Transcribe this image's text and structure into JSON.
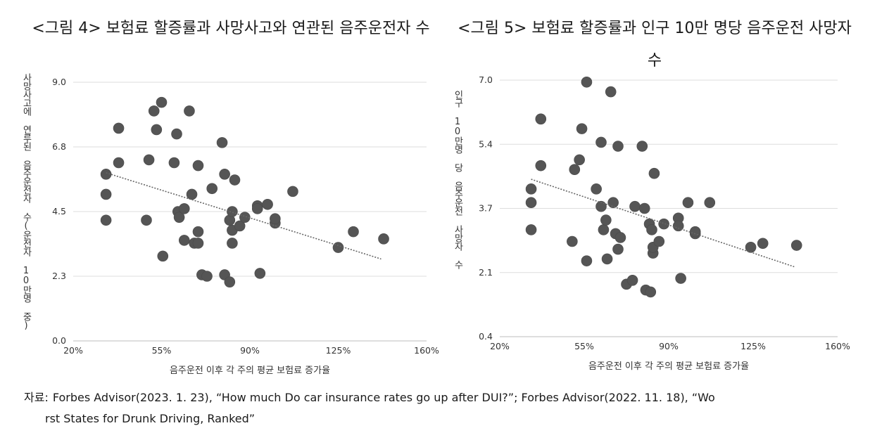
{
  "chart_data": [
    {
      "type": "scatter",
      "title": "<그림 4> 보험료 할증률과 사망사고와 연관된 음주운전자 수",
      "xlabel": "음주운전 이후 각 주의 평균 보험료 증가율",
      "ylabel": "사망사고에 연루된 음주운전자 수(운전자 10만명 중)",
      "xlim": [
        20,
        160
      ],
      "ylim": [
        0,
        9
      ],
      "x_ticks": [
        "20%",
        "55%",
        "90%",
        "125%",
        "160%"
      ],
      "y_ticks": [
        "0.0",
        "2.3",
        "4.5",
        "6.8",
        "9.0"
      ],
      "grid": "horizontal",
      "trendline": {
        "x": [
          33,
          142
        ],
        "y": [
          5.85,
          2.85
        ]
      },
      "points": [
        {
          "x": 33,
          "y": 5.8
        },
        {
          "x": 33,
          "y": 5.1
        },
        {
          "x": 33,
          "y": 4.2
        },
        {
          "x": 38,
          "y": 7.4
        },
        {
          "x": 38,
          "y": 6.2
        },
        {
          "x": 49,
          "y": 4.2
        },
        {
          "x": 50,
          "y": 6.3
        },
        {
          "x": 52,
          "y": 8.0
        },
        {
          "x": 53,
          "y": 7.35
        },
        {
          "x": 55,
          "y": 8.3
        },
        {
          "x": 55.5,
          "y": 2.95
        },
        {
          "x": 60,
          "y": 6.2
        },
        {
          "x": 61,
          "y": 7.2
        },
        {
          "x": 61.5,
          "y": 4.5
        },
        {
          "x": 62,
          "y": 4.3
        },
        {
          "x": 64,
          "y": 3.5
        },
        {
          "x": 64,
          "y": 4.6
        },
        {
          "x": 66,
          "y": 8.0
        },
        {
          "x": 67,
          "y": 5.1
        },
        {
          "x": 68,
          "y": 3.4
        },
        {
          "x": 69.5,
          "y": 3.4
        },
        {
          "x": 69.5,
          "y": 3.8
        },
        {
          "x": 69.5,
          "y": 6.1
        },
        {
          "x": 71,
          "y": 2.3
        },
        {
          "x": 73,
          "y": 2.25
        },
        {
          "x": 75,
          "y": 5.3
        },
        {
          "x": 79,
          "y": 6.9
        },
        {
          "x": 80,
          "y": 5.8
        },
        {
          "x": 80,
          "y": 2.3
        },
        {
          "x": 82,
          "y": 2.05
        },
        {
          "x": 82,
          "y": 4.2
        },
        {
          "x": 83,
          "y": 3.4
        },
        {
          "x": 83,
          "y": 3.85
        },
        {
          "x": 83,
          "y": 4.5
        },
        {
          "x": 84,
          "y": 5.6
        },
        {
          "x": 86,
          "y": 4.0
        },
        {
          "x": 88,
          "y": 4.3
        },
        {
          "x": 93,
          "y": 4.7
        },
        {
          "x": 93,
          "y": 4.6
        },
        {
          "x": 94,
          "y": 2.35
        },
        {
          "x": 97,
          "y": 4.75
        },
        {
          "x": 100,
          "y": 4.1
        },
        {
          "x": 100,
          "y": 4.25
        },
        {
          "x": 107,
          "y": 5.2
        },
        {
          "x": 125,
          "y": 3.25
        },
        {
          "x": 131,
          "y": 3.8
        },
        {
          "x": 143,
          "y": 3.55
        }
      ]
    },
    {
      "type": "scatter",
      "title": "<그림 5> 보험료 할증률과 인구 10만 명당 음주운전 사망자 수",
      "xlabel": "음주운전 이후 각 주의 평균 보험료 증가율",
      "ylabel": "인구 10만명 당 음주운전 사망자 수",
      "xlim": [
        20,
        160
      ],
      "ylim": [
        0.4,
        7.0
      ],
      "x_ticks": [
        "20%",
        "55%",
        "90%",
        "125%",
        "160%"
      ],
      "y_ticks": [
        "0.4",
        "2.1",
        "3.7",
        "5.4",
        "7.0"
      ],
      "grid": "horizontal",
      "trendline": {
        "x": [
          33,
          142
        ],
        "y": [
          4.45,
          2.2
        ]
      },
      "points": [
        {
          "x": 33,
          "y": 4.2
        },
        {
          "x": 33,
          "y": 3.85
        },
        {
          "x": 33,
          "y": 3.15
        },
        {
          "x": 37,
          "y": 6.0
        },
        {
          "x": 37,
          "y": 4.8
        },
        {
          "x": 50,
          "y": 2.85
        },
        {
          "x": 51,
          "y": 4.7
        },
        {
          "x": 53,
          "y": 4.95
        },
        {
          "x": 54,
          "y": 5.75
        },
        {
          "x": 56,
          "y": 6.95
        },
        {
          "x": 56,
          "y": 2.35
        },
        {
          "x": 60,
          "y": 4.2
        },
        {
          "x": 62,
          "y": 5.4
        },
        {
          "x": 62,
          "y": 3.75
        },
        {
          "x": 63,
          "y": 3.15
        },
        {
          "x": 64,
          "y": 3.4
        },
        {
          "x": 64.5,
          "y": 2.4
        },
        {
          "x": 66,
          "y": 6.7
        },
        {
          "x": 67,
          "y": 3.85
        },
        {
          "x": 68,
          "y": 3.05
        },
        {
          "x": 69,
          "y": 5.3
        },
        {
          "x": 69,
          "y": 2.65
        },
        {
          "x": 70,
          "y": 2.95
        },
        {
          "x": 72.5,
          "y": 1.75
        },
        {
          "x": 75,
          "y": 1.85
        },
        {
          "x": 76,
          "y": 3.75
        },
        {
          "x": 79,
          "y": 5.3
        },
        {
          "x": 80,
          "y": 3.7
        },
        {
          "x": 80.5,
          "y": 1.6
        },
        {
          "x": 82,
          "y": 3.3
        },
        {
          "x": 82.5,
          "y": 1.55
        },
        {
          "x": 83,
          "y": 3.15
        },
        {
          "x": 83.5,
          "y": 2.55
        },
        {
          "x": 83.5,
          "y": 2.7
        },
        {
          "x": 84,
          "y": 4.6
        },
        {
          "x": 86,
          "y": 2.85
        },
        {
          "x": 88,
          "y": 3.3
        },
        {
          "x": 94,
          "y": 3.45
        },
        {
          "x": 94,
          "y": 3.25
        },
        {
          "x": 95,
          "y": 1.9
        },
        {
          "x": 98,
          "y": 3.85
        },
        {
          "x": 101,
          "y": 3.05
        },
        {
          "x": 101,
          "y": 3.1
        },
        {
          "x": 107,
          "y": 3.85
        },
        {
          "x": 124,
          "y": 2.7
        },
        {
          "x": 129,
          "y": 2.8
        },
        {
          "x": 143,
          "y": 2.75
        }
      ]
    }
  ],
  "source": {
    "label": "자료:",
    "line1": "Forbes Advisor(2023. 1. 23), “How much Do car insurance rates go up after DUI?”; Forbes Advisor(2022. 11. 18), “Wo",
    "line2": "rst States for Drunk Driving, Ranked”"
  }
}
